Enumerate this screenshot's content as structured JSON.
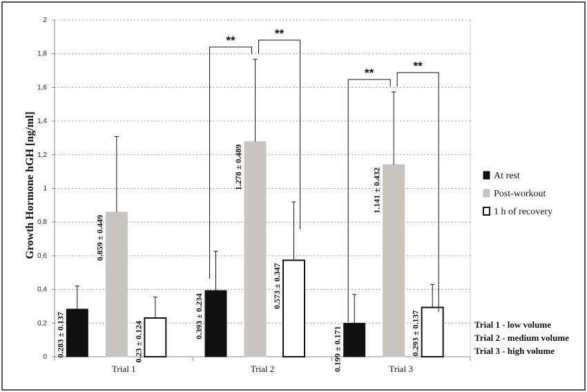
{
  "chart_data": {
    "type": "bar",
    "ylabel": "Growth Hormone hGH [ng/ml]",
    "ylim": [
      0,
      2
    ],
    "yticks": [
      "0",
      "0,2",
      "0,4",
      "0,6",
      "0,8",
      "1",
      "1,2",
      "1,4",
      "1,6",
      "1,8",
      "2"
    ],
    "categories": [
      "Trial 1",
      "Trial 2",
      "Trial 3"
    ],
    "grid": true,
    "legend_position": "right",
    "series": [
      {
        "name": "At rest",
        "color": "#111111",
        "values": [
          0.283,
          0.393,
          0.199
        ],
        "errors": [
          0.137,
          0.234,
          0.171
        ],
        "labels": [
          "0.283 ± 0.137",
          "0.393 ± 0.234",
          "0.199 ± 0.171"
        ]
      },
      {
        "name": "Post-workout",
        "color": "#c8c4bf",
        "values": [
          0.859,
          1.278,
          1.141
        ],
        "errors": [
          0.449,
          0.489,
          0.432
        ],
        "labels": [
          "0.859 ± 0.449",
          "1.278 ± 0.489",
          "1.141 ± 0.432"
        ]
      },
      {
        "name": "1 h of recovery",
        "color": "#ffffff",
        "values": [
          0.23,
          0.573,
          0.293
        ],
        "errors": [
          0.124,
          0.347,
          0.137
        ],
        "labels": [
          "0.23 ± 0.124",
          "0.573 ± 0.347",
          "0.293 ± 0.137"
        ]
      }
    ],
    "significance": [
      {
        "category": "Trial 2",
        "label": "**",
        "pair": [
          "At rest",
          "Post-workout"
        ]
      },
      {
        "category": "Trial 2",
        "label": "**",
        "pair": [
          "Post-workout",
          "1 h of recovery"
        ]
      },
      {
        "category": "Trial 3",
        "label": "**",
        "pair": [
          "At rest",
          "Post-workout"
        ]
      },
      {
        "category": "Trial 3",
        "label": "**",
        "pair": [
          "Post-workout",
          "1 h of recovery"
        ]
      }
    ],
    "notes": [
      "Trial 1 - low volume",
      "Trial 2 - medium volume",
      "Trial 3 - high volume"
    ]
  }
}
